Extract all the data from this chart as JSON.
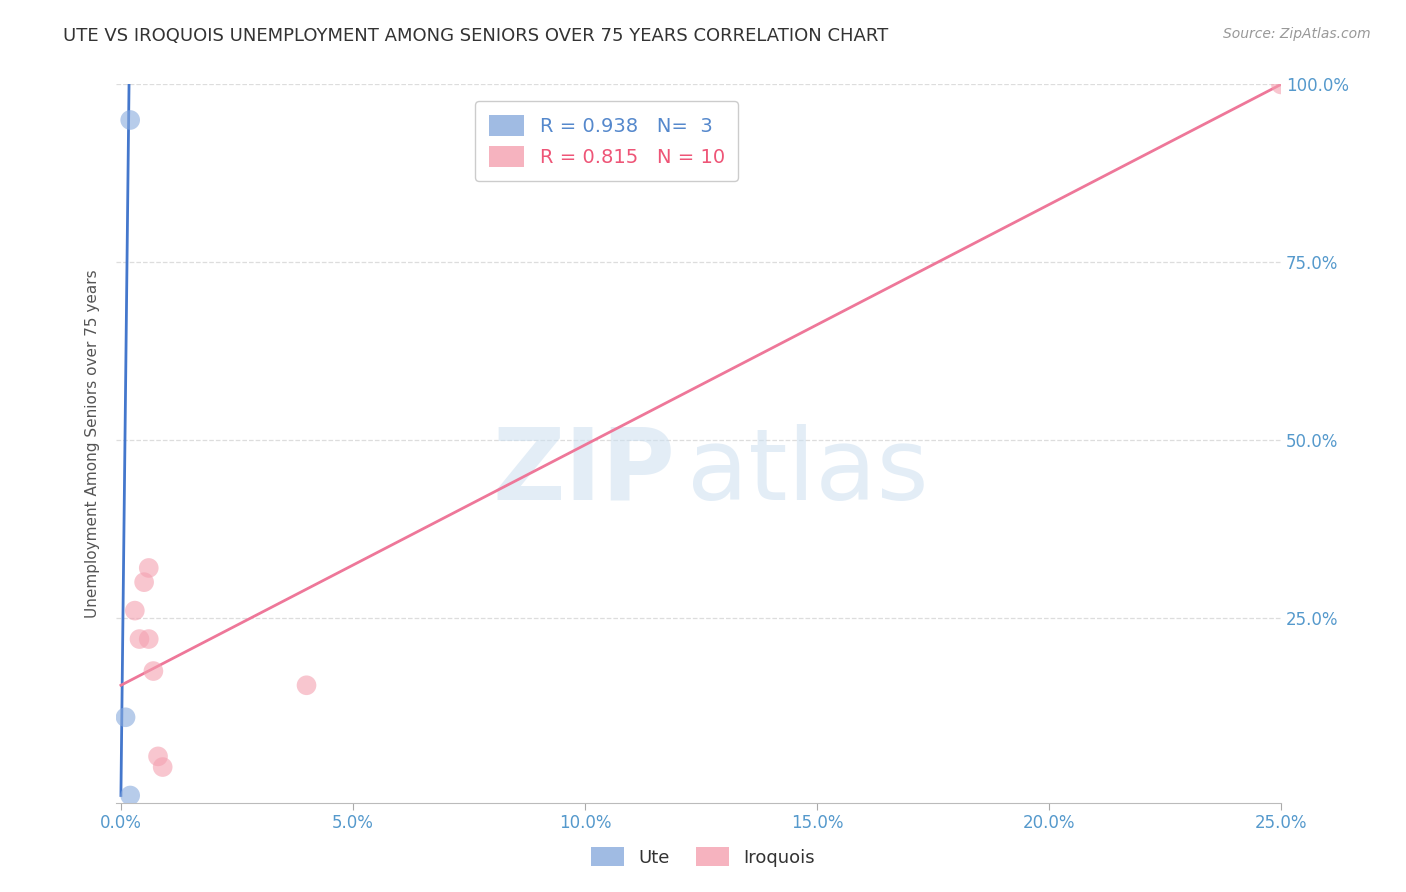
{
  "title": "UTE VS IROQUOIS UNEMPLOYMENT AMONG SENIORS OVER 75 YEARS CORRELATION CHART",
  "source": "Source: ZipAtlas.com",
  "ylabel": "Unemployment Among Seniors over 75 years",
  "xlim": [
    0.0,
    0.25
  ],
  "ylim": [
    0.0,
    1.0
  ],
  "xticks": [
    0.0,
    0.05,
    0.1,
    0.15,
    0.2,
    0.25
  ],
  "xtick_labels": [
    "0.0%",
    "5.0%",
    "10.0%",
    "15.0%",
    "20.0%",
    "25.0%"
  ],
  "yticks": [
    0.25,
    0.5,
    0.75,
    1.0
  ],
  "ytick_labels": [
    "25.0%",
    "50.0%",
    "75.0%",
    "100.0%"
  ],
  "ute_scatter_x": [
    0.001,
    0.002,
    0.002
  ],
  "ute_scatter_y": [
    0.11,
    0.0,
    0.95
  ],
  "ute_color": "#88aadd",
  "ute_R": "0.938",
  "ute_N": "3",
  "iroquois_scatter_x": [
    0.003,
    0.004,
    0.005,
    0.006,
    0.006,
    0.007,
    0.008,
    0.009,
    0.04,
    0.25
  ],
  "iroquois_scatter_y": [
    0.26,
    0.22,
    0.3,
    0.32,
    0.22,
    0.175,
    0.055,
    0.04,
    0.155,
    1.0
  ],
  "iroquois_color": "#f4a0b0",
  "iroquois_R": "0.815",
  "iroquois_N": "10",
  "ute_line_x": [
    0.0,
    0.00175
  ],
  "ute_line_y": [
    0.0,
    1.0
  ],
  "iroquois_line_x": [
    0.0,
    0.25
  ],
  "iroquois_line_y": [
    0.155,
    1.0
  ],
  "legend_ute_label": "Ute",
  "legend_iroquois_label": "Iroquois",
  "watermark_zip": "ZIP",
  "watermark_atlas": "atlas",
  "background_color": "#ffffff",
  "title_color": "#333333",
  "axis_label_color": "#555555",
  "tick_color": "#5599cc",
  "grid_color": "#dddddd"
}
